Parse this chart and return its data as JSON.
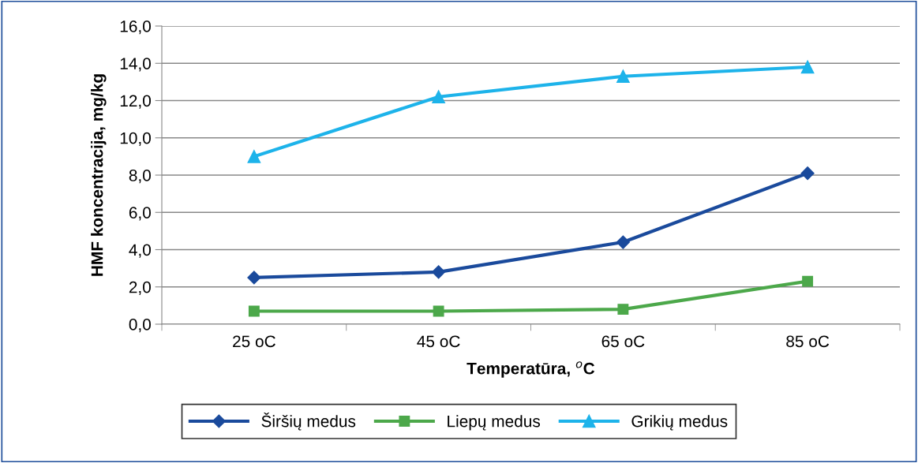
{
  "chart_data": {
    "type": "line",
    "xlabel": "Temperatūra, $^{o}$C",
    "ylabel": "HMF koncentracija, mg/kg",
    "categories": [
      "25 oC",
      "45 oC",
      "65 oC",
      "85 oC"
    ],
    "series": [
      {
        "name": "Širšių medus",
        "color": "#1a4a9c",
        "marker": "diamond",
        "values": [
          2.5,
          2.8,
          4.4,
          8.1
        ]
      },
      {
        "name": "Liepų medus",
        "color": "#4ca84a",
        "marker": "square",
        "values": [
          0.7,
          0.7,
          0.8,
          2.3
        ]
      },
      {
        "name": "Grikių medus",
        "color": "#1db3ea",
        "marker": "triangle",
        "values": [
          9.0,
          12.2,
          13.3,
          13.8
        ]
      }
    ],
    "ylim": [
      0,
      16
    ],
    "yticks": [
      {
        "value": 0,
        "label": "0,0"
      },
      {
        "value": 2,
        "label": "2,0"
      },
      {
        "value": 4,
        "label": "4,0"
      },
      {
        "value": 6,
        "label": "6,0"
      },
      {
        "value": 8,
        "label": "8,0"
      },
      {
        "value": 10,
        "label": "10,0"
      },
      {
        "value": 12,
        "label": "12,0"
      },
      {
        "value": 14,
        "label": "14,0"
      },
      {
        "value": 16,
        "label": "16,0"
      }
    ],
    "grid": "y",
    "legend": "bottom",
    "line_style": "solid"
  }
}
